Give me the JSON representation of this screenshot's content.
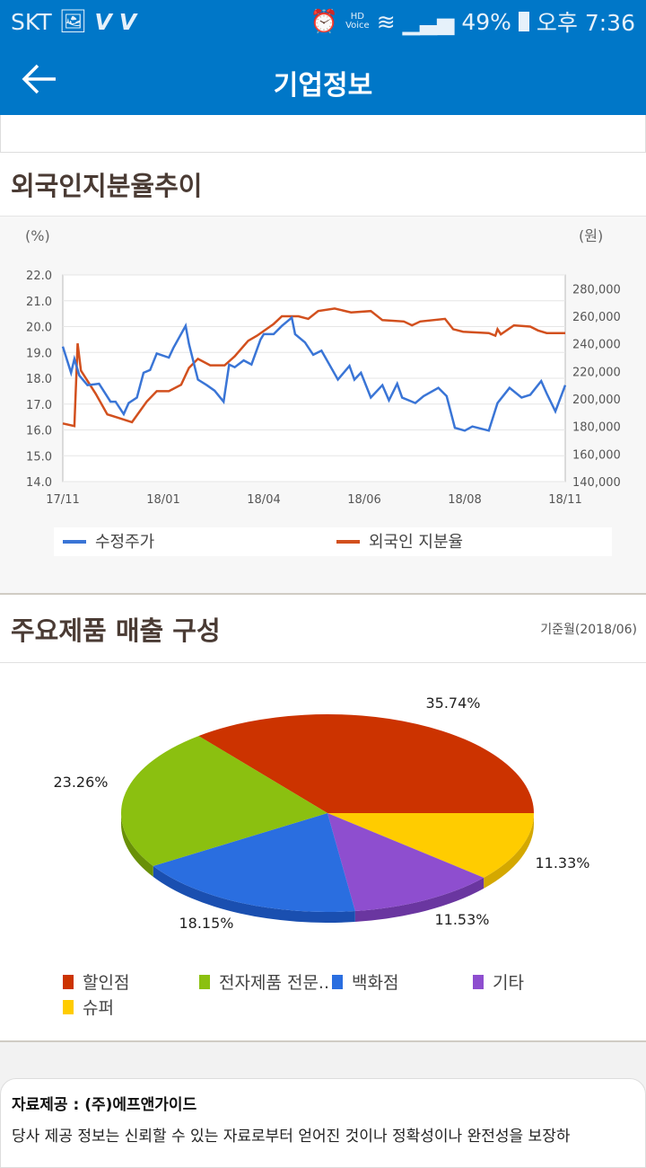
{
  "status_bar": {
    "carrier": "SKT",
    "battery": "49%",
    "time": "오후 7:36",
    "hd_label": "HD",
    "voice_label": "Voice",
    "icons": [
      "image-icon",
      "v-lte-icon",
      "v-lte-icon",
      "alarm-icon",
      "hd-voice-icon",
      "wifi-icon",
      "signal-icon",
      "battery-icon"
    ]
  },
  "app_bar": {
    "title": "기업정보",
    "back_icon": "arrow-left-icon"
  },
  "section1": {
    "title": "외국인지분율추이"
  },
  "section2": {
    "title": "주요제품 매출 구성",
    "base_month": "기준월(2018/06)"
  },
  "footer": {
    "title": "자료제공 : (주)에프앤가이드",
    "disclaimer": "당사 제공 정보는 신뢰할 수 있는 자료로부터 얻어진 것이나 정확성이나 완전성을 보장하"
  },
  "chart_data": [
    {
      "type": "line",
      "left_unit": "(%)",
      "right_unit": "(원)",
      "x_ticks": [
        "17/11",
        "18/01",
        "18/04",
        "18/06",
        "18/08",
        "18/11"
      ],
      "x_tick_dates": [
        "2017-11-01",
        "2018-01-01",
        "2018-04-01",
        "2018-06-01",
        "2018-08-01",
        "2018-11-01"
      ],
      "y_left": {
        "range": [
          14,
          22
        ],
        "ticks": [
          "14.0",
          "15.0",
          "16.0",
          "17.0",
          "18.0",
          "19.0",
          "20.0",
          "21.0",
          "22.0"
        ]
      },
      "y_right": {
        "range": [
          140000,
          290000
        ],
        "ticks": [
          "140,000",
          "160,000",
          "180,000",
          "200,000",
          "220,000",
          "240,000",
          "260,000",
          "280,000"
        ]
      },
      "grid": true,
      "legend_position": "bottom",
      "series": [
        {
          "name": "수정주가",
          "axis": "right",
          "color": "#3a75d6",
          "points": [
            [
              "2017-11-01",
              238000
            ],
            [
              "2017-11-06",
              219000
            ],
            [
              "2017-11-08",
              229000
            ],
            [
              "2017-11-11",
              217000
            ],
            [
              "2017-11-16",
              210000
            ],
            [
              "2017-11-23",
              211000
            ],
            [
              "2017-11-30",
              198000
            ],
            [
              "2017-12-03",
              198000
            ],
            [
              "2017-12-08",
              189000
            ],
            [
              "2017-12-11",
              197000
            ],
            [
              "2017-12-16",
              201000
            ],
            [
              "2017-12-20",
              219000
            ],
            [
              "2017-12-24",
              221000
            ],
            [
              "2017-12-28",
              233000
            ],
            [
              "2018-01-06",
              230000
            ],
            [
              "2018-01-10",
              237000
            ],
            [
              "2018-01-21",
              253000
            ],
            [
              "2018-01-24",
              240000
            ],
            [
              "2018-02-01",
              214000
            ],
            [
              "2018-02-09",
              210000
            ],
            [
              "2018-02-16",
              206000
            ],
            [
              "2018-02-24",
              198000
            ],
            [
              "2018-03-01",
              225000
            ],
            [
              "2018-03-06",
              223000
            ],
            [
              "2018-03-14",
              228000
            ],
            [
              "2018-03-21",
              225000
            ],
            [
              "2018-03-29",
              243000
            ],
            [
              "2018-04-01",
              247000
            ],
            [
              "2018-04-07",
              247000
            ],
            [
              "2018-04-12",
              253000
            ],
            [
              "2018-04-18",
              259000
            ],
            [
              "2018-04-20",
              247000
            ],
            [
              "2018-04-26",
              241000
            ],
            [
              "2018-05-01",
              232000
            ],
            [
              "2018-05-06",
              235000
            ],
            [
              "2018-05-16",
              214000
            ],
            [
              "2018-05-23",
              224000
            ],
            [
              "2018-05-26",
              214000
            ],
            [
              "2018-05-30",
              219000
            ],
            [
              "2018-06-05",
              201000
            ],
            [
              "2018-06-12",
              210000
            ],
            [
              "2018-06-16",
              199000
            ],
            [
              "2018-06-21",
              211000
            ],
            [
              "2018-06-24",
              201000
            ],
            [
              "2018-07-02",
              197000
            ],
            [
              "2018-07-07",
              202000
            ],
            [
              "2018-07-16",
              208000
            ],
            [
              "2018-07-21",
              202000
            ],
            [
              "2018-07-26",
              179000
            ],
            [
              "2018-08-01",
              177000
            ],
            [
              "2018-08-08",
              180000
            ],
            [
              "2018-08-23",
              177000
            ],
            [
              "2018-08-31",
              197000
            ],
            [
              "2018-09-11",
              208000
            ],
            [
              "2018-09-22",
              201000
            ],
            [
              "2018-09-30",
              203000
            ],
            [
              "2018-10-10",
              213000
            ],
            [
              "2018-10-15",
              204000
            ],
            [
              "2018-10-23",
              191000
            ],
            [
              "2018-11-01",
              210000
            ]
          ]
        },
        {
          "name": "외국인 지분율",
          "axis": "left",
          "color": "#d2501e",
          "points": [
            [
              "2017-11-01",
              16.25
            ],
            [
              "2017-11-08",
              16.15
            ],
            [
              "2017-11-10",
              19.35
            ],
            [
              "2017-11-12",
              18.3
            ],
            [
              "2017-11-21",
              17.4
            ],
            [
              "2017-11-28",
              16.6
            ],
            [
              "2017-12-03",
              16.5
            ],
            [
              "2017-12-13",
              16.3
            ],
            [
              "2017-12-22",
              17.1
            ],
            [
              "2017-12-28",
              17.5
            ],
            [
              "2018-01-06",
              17.5
            ],
            [
              "2018-01-17",
              17.75
            ],
            [
              "2018-01-24",
              18.4
            ],
            [
              "2018-02-01",
              18.75
            ],
            [
              "2018-02-12",
              18.5
            ],
            [
              "2018-02-25",
              18.5
            ],
            [
              "2018-03-06",
              18.85
            ],
            [
              "2018-03-18",
              19.45
            ],
            [
              "2018-03-26",
              19.65
            ],
            [
              "2018-04-07",
              20.1
            ],
            [
              "2018-04-12",
              20.4
            ],
            [
              "2018-04-22",
              20.4
            ],
            [
              "2018-04-28",
              20.3
            ],
            [
              "2018-05-04",
              20.6
            ],
            [
              "2018-05-14",
              20.7
            ],
            [
              "2018-05-24",
              20.55
            ],
            [
              "2018-06-05",
              20.6
            ],
            [
              "2018-06-12",
              20.25
            ],
            [
              "2018-06-25",
              20.2
            ],
            [
              "2018-06-30",
              20.05
            ],
            [
              "2018-07-05",
              20.2
            ],
            [
              "2018-07-20",
              20.3
            ],
            [
              "2018-07-25",
              19.9
            ],
            [
              "2018-07-31",
              19.8
            ],
            [
              "2018-08-23",
              19.75
            ],
            [
              "2018-08-29",
              19.65
            ],
            [
              "2018-08-31",
              19.9
            ],
            [
              "2018-09-03",
              19.7
            ],
            [
              "2018-09-15",
              20.05
            ],
            [
              "2018-09-30",
              20.0
            ],
            [
              "2018-10-07",
              19.85
            ],
            [
              "2018-10-15",
              19.75
            ],
            [
              "2018-11-01",
              19.75
            ]
          ]
        }
      ]
    },
    {
      "type": "pie",
      "legend_position": "bottom",
      "slices": [
        {
          "label": "할인점",
          "value": 35.74,
          "display": "35.74%",
          "color": "#cc3300",
          "side": "#9a2600"
        },
        {
          "label": "슈퍼",
          "value": 11.33,
          "display": "11.33%",
          "color": "#ffcc00",
          "side": "#d4a800"
        },
        {
          "label": "기타",
          "value": 11.53,
          "display": "11.53%",
          "color": "#8e4ecf",
          "side": "#6a36a0"
        },
        {
          "label": "백화점",
          "value": 18.15,
          "display": "18.15%",
          "color": "#2a6ee0",
          "side": "#1a4fb0"
        },
        {
          "label": "전자제품 전문..",
          "value": 23.26,
          "display": "23.26%",
          "color": "#8bc010",
          "side": "#699008"
        }
      ]
    }
  ]
}
